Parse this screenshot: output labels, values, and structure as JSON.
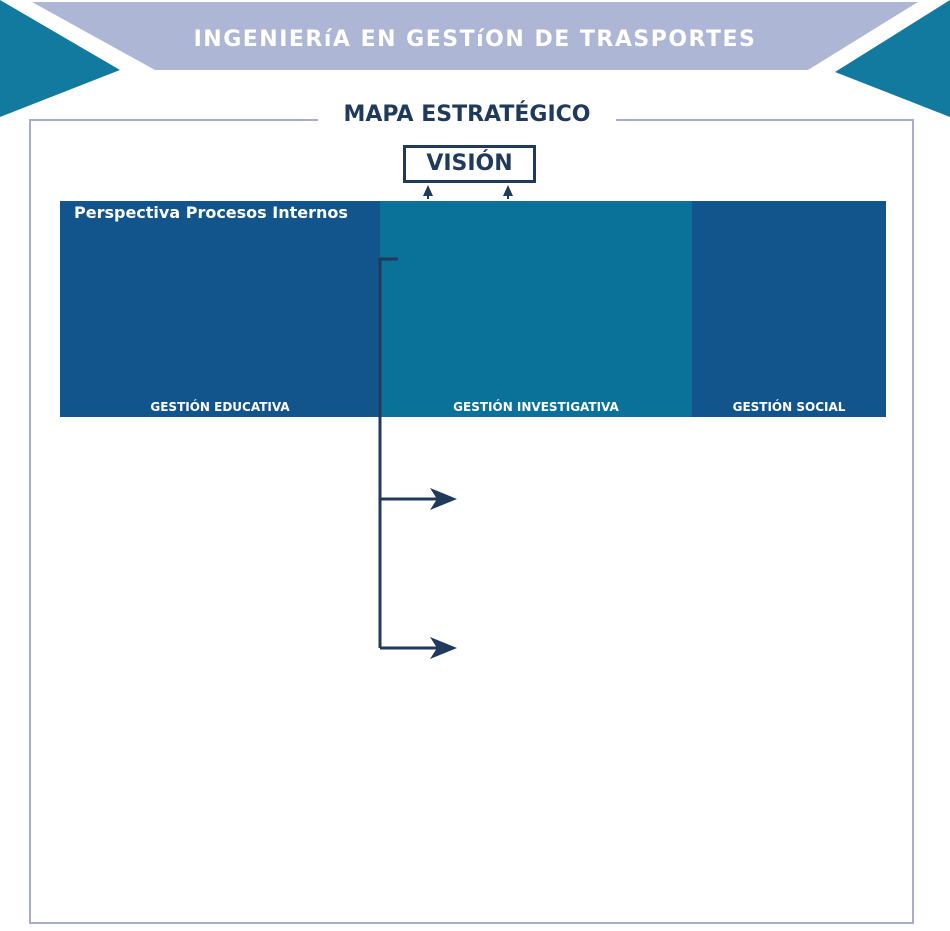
{
  "header": {
    "title": "INGENIERíA EN GESTíON DE TRASPORTES"
  },
  "map": {
    "title": "MAPA ESTRATÉGICO",
    "vision_label": "VISIÓN",
    "perspective_label": "Perspectiva Procesos Internos",
    "columns": [
      {
        "label": "GESTIÓN EDUCATIVA"
      },
      {
        "label": "GESTIÓN INVESTIGATIVA"
      },
      {
        "label": "GESTIÓN SOCIAL"
      }
    ]
  },
  "colors": {
    "banner_light": "#aeb6d6",
    "banner_teal": "#127a9f",
    "navy": "#1f3a5a",
    "column_blue": "#11558c",
    "column_teal": "#0a7199",
    "frame": "#a8acc8"
  }
}
